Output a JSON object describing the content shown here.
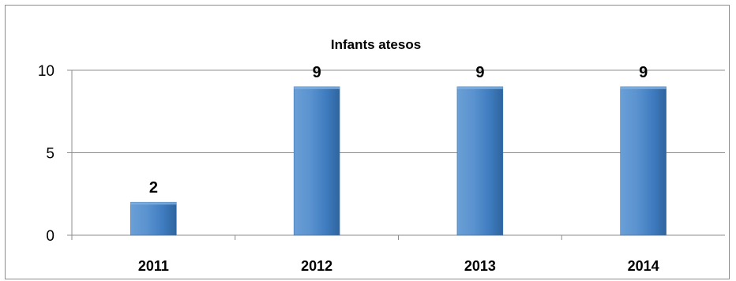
{
  "chart_data": {
    "type": "bar",
    "title": "Infants atesos",
    "categories": [
      "2011",
      "2012",
      "2013",
      "2014"
    ],
    "values": [
      2,
      9,
      9,
      9
    ],
    "data_labels": [
      "2",
      "9",
      "9",
      "9"
    ],
    "xlabel": "",
    "ylabel": "",
    "ylim": [
      0,
      10
    ],
    "yticks": [
      0,
      5,
      10
    ],
    "ytick_labels": [
      "0",
      "5",
      "10"
    ],
    "grid": true,
    "legend": "none",
    "colors": {
      "bar": "#4a86c5",
      "bar_light": "#7fb0e0",
      "bar_dark": "#2f659f",
      "grid": "#8c8c8c",
      "axis": "#8c8c8c"
    }
  }
}
